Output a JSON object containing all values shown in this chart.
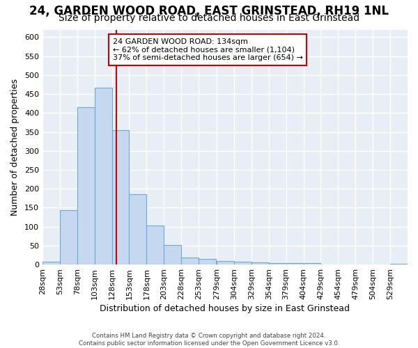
{
  "title1": "24, GARDEN WOOD ROAD, EAST GRINSTEAD, RH19 1NL",
  "title2": "Size of property relative to detached houses in East Grinstead",
  "xlabel": "Distribution of detached houses by size in East Grinstead",
  "ylabel": "Number of detached properties",
  "bin_labels": [
    "28sqm",
    "53sqm",
    "78sqm",
    "103sqm",
    "128sqm",
    "153sqm",
    "178sqm",
    "203sqm",
    "228sqm",
    "253sqm",
    "279sqm",
    "304sqm",
    "329sqm",
    "354sqm",
    "379sqm",
    "404sqm",
    "429sqm",
    "454sqm",
    "479sqm",
    "504sqm",
    "529sqm"
  ],
  "bin_edges": [
    28,
    53,
    78,
    103,
    128,
    153,
    178,
    203,
    228,
    253,
    279,
    304,
    329,
    354,
    379,
    404,
    429,
    454,
    479,
    504,
    529,
    554
  ],
  "bar_values": [
    8,
    143,
    415,
    467,
    355,
    185,
    103,
    52,
    18,
    15,
    10,
    8,
    5,
    3,
    3,
    3,
    1,
    1,
    1,
    0,
    2
  ],
  "bar_color": "#c5d8f0",
  "bar_edge_color": "#6aaad4",
  "vline_x": 134,
  "vline_color": "#cc0000",
  "annotation_line1": "24 GARDEN WOOD ROAD: 134sqm",
  "annotation_line2": "← 62% of detached houses are smaller (1,104)",
  "annotation_line3": "37% of semi-detached houses are larger (654) →",
  "annotation_box_color": "#ffffff",
  "annotation_box_edge": "#cc0000",
  "ylim": [
    0,
    620
  ],
  "yticks": [
    0,
    50,
    100,
    150,
    200,
    250,
    300,
    350,
    400,
    450,
    500,
    550,
    600
  ],
  "footer_text": "Contains HM Land Registry data © Crown copyright and database right 2024.\nContains public sector information licensed under the Open Government Licence v3.0.",
  "bg_color": "#ffffff",
  "plot_bg_color": "#e8eef5",
  "grid_color": "#ffffff",
  "title1_fontsize": 12,
  "title2_fontsize": 10
}
